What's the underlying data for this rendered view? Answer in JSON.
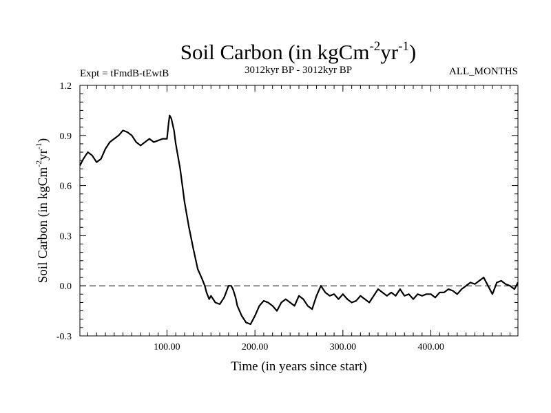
{
  "chart_data": {
    "type": "line",
    "title": {
      "main": "Soil Carbon (in kgCm",
      "exp1": "-2",
      "mid": "yr",
      "exp2": "-1",
      "end": ")"
    },
    "subtitle_left": "Expt = tFmdB-tEwtB",
    "subtitle_center": "3012kyr BP - 3012kyr BP",
    "subtitle_right": "ALL_MONTHS",
    "xlabel": "Time (in years since start)",
    "ylabel": {
      "main": "Soil Carbon (in kgCm",
      "exp1": "-2",
      "mid": "yr",
      "exp2": "-1",
      "end": ")"
    },
    "xlim": [
      1,
      499
    ],
    "ylim": [
      -0.3,
      1.2
    ],
    "x_ticks": [
      100,
      200,
      300,
      400
    ],
    "x_tick_labels": [
      "100.00",
      "200.00",
      "300.00",
      "400.00"
    ],
    "y_ticks": [
      -0.3,
      0.0,
      0.3,
      0.6,
      0.9,
      1.2
    ],
    "y_tick_labels": [
      "-0.3",
      "0.0",
      "0.3",
      "0.6",
      "0.9",
      "1.2"
    ],
    "reference_line": {
      "y": 0.0,
      "style": "dashed"
    },
    "series": [
      {
        "name": "Soil Carbon",
        "x": [
          1,
          5,
          10,
          15,
          20,
          25,
          30,
          35,
          40,
          45,
          50,
          55,
          60,
          65,
          70,
          75,
          80,
          85,
          90,
          95,
          100,
          102,
          103,
          105,
          108,
          110,
          115,
          120,
          125,
          130,
          135,
          140,
          143,
          145,
          148,
          150,
          155,
          160,
          165,
          170,
          173,
          175,
          178,
          180,
          185,
          190,
          195,
          200,
          205,
          210,
          215,
          220,
          225,
          230,
          235,
          240,
          245,
          250,
          255,
          260,
          265,
          270,
          275,
          280,
          285,
          290,
          295,
          300,
          305,
          310,
          315,
          320,
          325,
          330,
          335,
          340,
          345,
          350,
          355,
          360,
          365,
          370,
          375,
          380,
          385,
          390,
          395,
          400,
          405,
          410,
          415,
          420,
          425,
          430,
          435,
          440,
          445,
          450,
          455,
          460,
          465,
          470,
          475,
          480,
          485,
          490,
          495,
          499
        ],
        "values": [
          0.72,
          0.76,
          0.8,
          0.78,
          0.74,
          0.76,
          0.82,
          0.86,
          0.88,
          0.9,
          0.93,
          0.92,
          0.9,
          0.86,
          0.84,
          0.86,
          0.88,
          0.86,
          0.87,
          0.88,
          0.88,
          0.98,
          1.02,
          1.0,
          0.93,
          0.85,
          0.7,
          0.5,
          0.35,
          0.22,
          0.1,
          0.04,
          0.0,
          -0.04,
          -0.08,
          -0.06,
          -0.1,
          -0.11,
          -0.07,
          0.0,
          0.0,
          -0.02,
          -0.07,
          -0.12,
          -0.18,
          -0.22,
          -0.23,
          -0.18,
          -0.12,
          -0.09,
          -0.1,
          -0.12,
          -0.15,
          -0.1,
          -0.08,
          -0.1,
          -0.12,
          -0.06,
          -0.08,
          -0.12,
          -0.14,
          -0.06,
          0.0,
          -0.04,
          -0.06,
          -0.05,
          -0.08,
          -0.05,
          -0.08,
          -0.1,
          -0.09,
          -0.06,
          -0.08,
          -0.1,
          -0.06,
          -0.02,
          -0.04,
          -0.06,
          -0.04,
          -0.06,
          -0.02,
          -0.06,
          -0.05,
          -0.08,
          -0.05,
          -0.06,
          -0.05,
          -0.05,
          -0.07,
          -0.04,
          -0.04,
          -0.02,
          -0.03,
          -0.05,
          -0.02,
          0.0,
          0.02,
          0.01,
          0.03,
          0.05,
          0.0,
          -0.05,
          0.02,
          0.03,
          0.01,
          0.0,
          -0.02,
          0.02
        ]
      }
    ]
  }
}
